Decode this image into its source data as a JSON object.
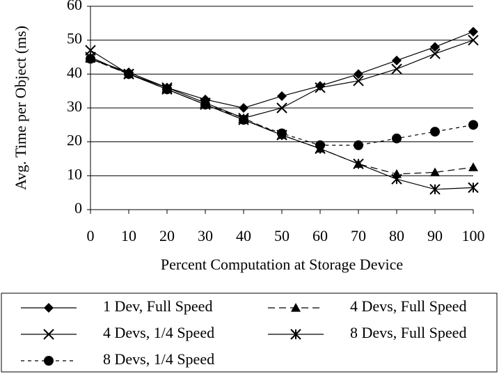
{
  "chart_data": {
    "type": "line",
    "x_label": "Percent Computation at Storage Device",
    "y_label": "Avg. Time per Object (ms)",
    "x": [
      0,
      10,
      20,
      30,
      40,
      50,
      60,
      70,
      80,
      90,
      100
    ],
    "xlim": [
      0,
      100
    ],
    "xticks": [
      0,
      10,
      20,
      30,
      40,
      50,
      60,
      70,
      80,
      90,
      100
    ],
    "ylim": [
      0,
      60
    ],
    "yticks": [
      0,
      10,
      20,
      30,
      40,
      50,
      60
    ],
    "grid": true,
    "series": [
      {
        "name": "1 Dev, Full Speed",
        "color": "#000000",
        "marker": "diamond",
        "dash": "solid",
        "values": [
          44.5,
          40.5,
          36,
          32.5,
          30,
          33.5,
          36.5,
          40,
          44,
          48,
          52.5
        ]
      },
      {
        "name": "4 Devs, Full Speed",
        "color": "#000000",
        "marker": "triangle",
        "dash": "long",
        "values": [
          44.5,
          40,
          35.5,
          31,
          27,
          22,
          18,
          13.5,
          10.5,
          11,
          12.5
        ]
      },
      {
        "name": "4 Devs, 1/4 Speed",
        "color": "#000000",
        "marker": "cross",
        "dash": "solid",
        "values": [
          47,
          40,
          36,
          31.5,
          27,
          30,
          36,
          38,
          41.5,
          46,
          50
        ]
      },
      {
        "name": "8 Devs, Full Speed",
        "color": "#000000",
        "marker": "asterisk",
        "dash": "solid",
        "values": [
          45,
          40,
          35.5,
          31,
          26.5,
          22,
          18,
          13.5,
          9,
          6,
          6.5
        ]
      },
      {
        "name": "8 Devs, 1/4 Speed",
        "color": "#000000",
        "marker": "circle",
        "dash": "short",
        "values": [
          44.5,
          40,
          35.5,
          31,
          26.5,
          22.5,
          19,
          19,
          21,
          23,
          25
        ]
      }
    ]
  }
}
